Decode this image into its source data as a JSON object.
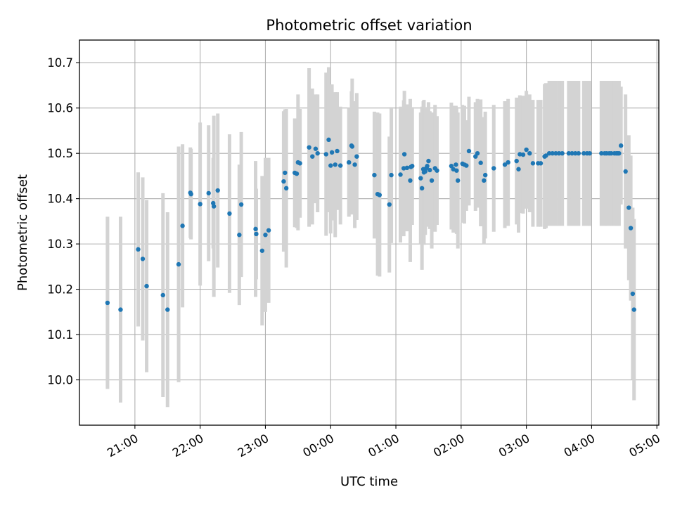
{
  "chart_data": {
    "type": "scatter",
    "title": "Photometric offset variation",
    "xlabel": "UTC time",
    "ylabel": "Photometric offset",
    "grid": true,
    "xlim": [
      20.15,
      29.03
    ],
    "ylim": [
      9.9,
      10.75
    ],
    "xtick_values": [
      21,
      22,
      23,
      24,
      25,
      26,
      27,
      28,
      29
    ],
    "xtick_labels": [
      "21:00",
      "22:00",
      "23:00",
      "00:00",
      "01:00",
      "02:00",
      "03:00",
      "04:00",
      "05:00"
    ],
    "ytick_values": [
      10.0,
      10.1,
      10.2,
      10.3,
      10.4,
      10.5,
      10.6,
      10.7
    ],
    "ytick_labels": [
      "10.0",
      "10.1",
      "10.2",
      "10.3",
      "10.4",
      "10.5",
      "10.6",
      "10.7"
    ],
    "colors": {
      "points": "#1f77b4",
      "errorbars": "#d3d3d3",
      "grid": "#b0b0b0"
    },
    "series": [
      {
        "points": [
          [
            20.58,
            10.17,
            0.19
          ],
          [
            20.78,
            10.155,
            0.205
          ],
          [
            21.05,
            10.288,
            0.17
          ],
          [
            21.12,
            10.267,
            0.18
          ],
          [
            21.18,
            10.207,
            0.19
          ],
          [
            21.43,
            10.187,
            0.225
          ],
          [
            21.5,
            10.155,
            0.215
          ],
          [
            21.67,
            10.255,
            0.26
          ],
          [
            21.73,
            10.34,
            0.18
          ],
          [
            21.85,
            10.413,
            0.1
          ],
          [
            21.86,
            10.41,
            0.1
          ],
          [
            22.0,
            10.388,
            0.18
          ],
          [
            22.13,
            10.412,
            0.15
          ],
          [
            22.2,
            10.39,
            0.1
          ],
          [
            22.21,
            10.383,
            0.2
          ],
          [
            22.27,
            10.418,
            0.17
          ],
          [
            22.45,
            10.367,
            0.175
          ],
          [
            22.6,
            10.32,
            0.155
          ],
          [
            22.63,
            10.387,
            0.16
          ],
          [
            22.85,
            10.333,
            0.15
          ],
          [
            22.86,
            10.322,
            0.1
          ],
          [
            22.95,
            10.285,
            0.165
          ],
          [
            23.0,
            10.32,
            0.17
          ],
          [
            23.05,
            10.33,
            0.16
          ],
          [
            23.28,
            10.438,
            0.155
          ],
          [
            23.3,
            10.457,
            0.14
          ],
          [
            23.32,
            10.423,
            0.175
          ],
          [
            23.45,
            10.457,
            0.12
          ],
          [
            23.48,
            10.455,
            0.12
          ],
          [
            23.5,
            10.48,
            0.15
          ],
          [
            23.53,
            10.478,
            0.12
          ],
          [
            23.67,
            10.513,
            0.175
          ],
          [
            23.72,
            10.493,
            0.15
          ],
          [
            23.77,
            10.51,
            0.12
          ],
          [
            23.8,
            10.5,
            0.13
          ],
          [
            23.93,
            10.498,
            0.18
          ],
          [
            23.97,
            10.53,
            0.16
          ],
          [
            24.0,
            10.473,
            0.15
          ],
          [
            24.02,
            10.502,
            0.15
          ],
          [
            24.07,
            10.475,
            0.16
          ],
          [
            24.1,
            10.505,
            0.13
          ],
          [
            24.15,
            10.473,
            0.13
          ],
          [
            24.28,
            10.48,
            0.12
          ],
          [
            24.32,
            10.517,
            0.12
          ],
          [
            24.33,
            10.515,
            0.15
          ],
          [
            24.37,
            10.475,
            0.14
          ],
          [
            24.4,
            10.493,
            0.14
          ],
          [
            24.67,
            10.452,
            0.14
          ],
          [
            24.72,
            10.41,
            0.18
          ],
          [
            24.75,
            10.408,
            0.18
          ],
          [
            24.9,
            10.387,
            0.15
          ],
          [
            24.93,
            10.452,
            0.15
          ],
          [
            25.07,
            10.453,
            0.15
          ],
          [
            25.12,
            10.467,
            0.15
          ],
          [
            25.13,
            10.498,
            0.14
          ],
          [
            25.17,
            10.468,
            0.14
          ],
          [
            25.22,
            10.44,
            0.18
          ],
          [
            25.23,
            10.47,
            0.12
          ],
          [
            25.25,
            10.472,
            0.13
          ],
          [
            25.38,
            10.445,
            0.145
          ],
          [
            25.4,
            10.423,
            0.18
          ],
          [
            25.42,
            10.465,
            0.15
          ],
          [
            25.43,
            10.458,
            0.16
          ],
          [
            25.45,
            10.46,
            0.14
          ],
          [
            25.47,
            10.468,
            0.13
          ],
          [
            25.48,
            10.472,
            0.13
          ],
          [
            25.5,
            10.483,
            0.13
          ],
          [
            25.52,
            10.463,
            0.13
          ],
          [
            25.55,
            10.44,
            0.15
          ],
          [
            25.6,
            10.467,
            0.14
          ],
          [
            25.63,
            10.462,
            0.12
          ],
          [
            25.85,
            10.472,
            0.14
          ],
          [
            25.88,
            10.465,
            0.14
          ],
          [
            25.92,
            10.475,
            0.13
          ],
          [
            25.93,
            10.462,
            0.14
          ],
          [
            25.95,
            10.44,
            0.15
          ],
          [
            26.02,
            10.477,
            0.13
          ],
          [
            26.05,
            10.475,
            0.13
          ],
          [
            26.08,
            10.473,
            0.1
          ],
          [
            26.12,
            10.505,
            0.12
          ],
          [
            26.22,
            10.493,
            0.12
          ],
          [
            26.25,
            10.5,
            0.12
          ],
          [
            26.3,
            10.479,
            0.14
          ],
          [
            26.35,
            10.44,
            0.14
          ],
          [
            26.37,
            10.452,
            0.14
          ],
          [
            26.5,
            10.467,
            0.14
          ],
          [
            26.67,
            10.475,
            0.14
          ],
          [
            26.72,
            10.48,
            0.14
          ],
          [
            26.85,
            10.483,
            0.14
          ],
          [
            26.88,
            10.465,
            0.14
          ],
          [
            26.9,
            10.498,
            0.13
          ],
          [
            26.95,
            10.497,
            0.13
          ],
          [
            27.0,
            10.508,
            0.13
          ],
          [
            27.05,
            10.5,
            0.13
          ],
          [
            27.1,
            10.478,
            0.14
          ],
          [
            27.18,
            10.478,
            0.14
          ],
          [
            27.22,
            10.478,
            0.14
          ],
          [
            27.28,
            10.493,
            0.16
          ],
          [
            27.3,
            10.495,
            0.16
          ],
          [
            27.35,
            10.5,
            0.16
          ],
          [
            27.4,
            10.5,
            0.16
          ],
          [
            27.45,
            10.5,
            0.16
          ],
          [
            27.5,
            10.5,
            0.16
          ],
          [
            27.55,
            10.5,
            0.16
          ],
          [
            27.65,
            10.5,
            0.16
          ],
          [
            27.7,
            10.5,
            0.16
          ],
          [
            27.75,
            10.5,
            0.16
          ],
          [
            27.8,
            10.5,
            0.16
          ],
          [
            27.88,
            10.5,
            0.16
          ],
          [
            27.93,
            10.5,
            0.16
          ],
          [
            27.97,
            10.5,
            0.16
          ],
          [
            28.15,
            10.5,
            0.16
          ],
          [
            28.2,
            10.5,
            0.16
          ],
          [
            28.23,
            10.5,
            0.16
          ],
          [
            28.27,
            10.5,
            0.16
          ],
          [
            28.3,
            10.5,
            0.16
          ],
          [
            28.35,
            10.5,
            0.16
          ],
          [
            28.38,
            10.5,
            0.16
          ],
          [
            28.4,
            10.5,
            0.16
          ],
          [
            28.42,
            10.5,
            0.16
          ],
          [
            28.45,
            10.517,
            0.13
          ],
          [
            28.52,
            10.46,
            0.17
          ],
          [
            28.57,
            10.38,
            0.16
          ],
          [
            28.6,
            10.335,
            0.16
          ],
          [
            28.63,
            10.19,
            0.19
          ],
          [
            28.65,
            10.155,
            0.2
          ]
        ]
      }
    ]
  }
}
